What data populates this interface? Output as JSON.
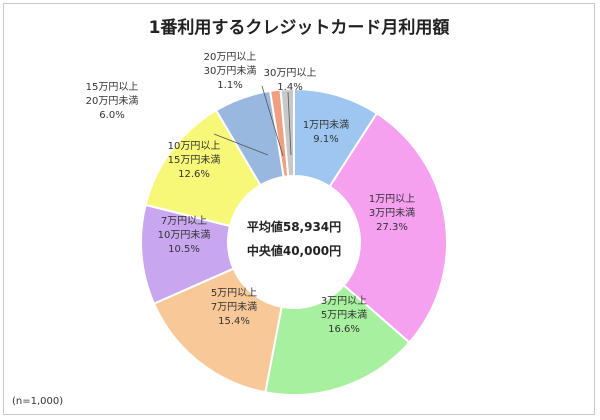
{
  "chart_data": {
    "type": "pie",
    "title": "1番利用するクレジットカード月利用額",
    "center_lines": [
      "平均値58,934円",
      "中央値40,000円"
    ],
    "note": "(n=1,000)",
    "slices": [
      {
        "lines": [
          "1万円未満",
          "9.1%"
        ],
        "value": 9.1,
        "color": "#9ec6f0"
      },
      {
        "lines": [
          "1万円以上",
          "3万円未満",
          "27.3%"
        ],
        "value": 27.3,
        "color": "#f6a0f0"
      },
      {
        "lines": [
          "3万円以上",
          "5万円未満",
          "16.6%"
        ],
        "value": 16.6,
        "color": "#a6f0a0"
      },
      {
        "lines": [
          "5万円以上",
          "7万円未満",
          "15.4%"
        ],
        "value": 15.4,
        "color": "#f8c898"
      },
      {
        "lines": [
          "7万円以上",
          "10万円未満",
          "10.5%"
        ],
        "value": 10.5,
        "color": "#c8a6f0"
      },
      {
        "lines": [
          "10万円以上",
          "15万円未満",
          "12.6%"
        ],
        "value": 12.6,
        "color": "#f8f878"
      },
      {
        "lines": [
          "15万円以上",
          "20万円未満",
          "6.0%"
        ],
        "value": 6.0,
        "color": "#98b8e0"
      },
      {
        "lines": [
          "20万円以上",
          "30万円未満",
          "1.1%"
        ],
        "value": 1.1,
        "color": "#f0a080"
      },
      {
        "lines": [
          "30万円以上",
          "1.4%"
        ],
        "value": 1.4,
        "color": "#c8c8c8"
      }
    ]
  }
}
